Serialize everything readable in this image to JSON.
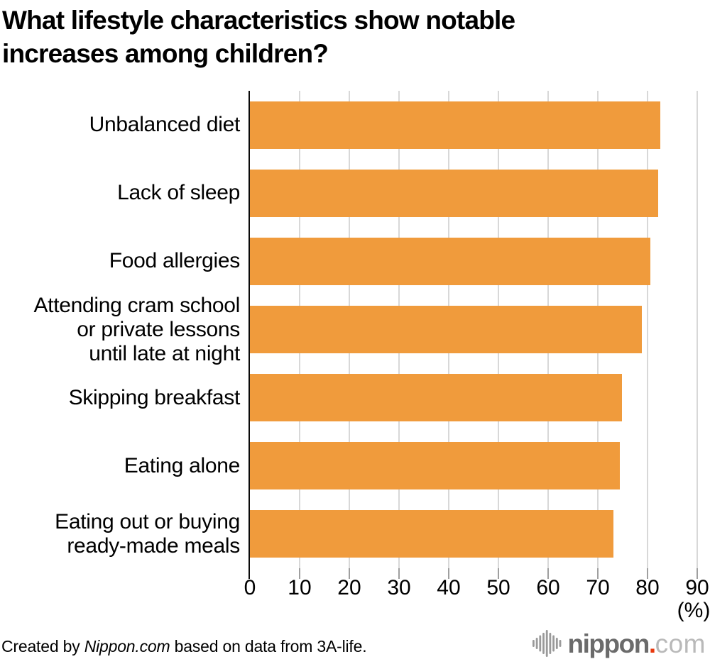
{
  "chart_data": {
    "type": "bar",
    "orientation": "horizontal",
    "title": "What lifestyle characteristics show notable increases among children?",
    "categories": [
      "Unbalanced diet",
      "Lack of sleep",
      "Food allergies",
      "Attending cram school\nor private lessons\nuntil late at night",
      "Skipping breakfast",
      "Eating alone",
      "Eating out or buying\nready-made meals"
    ],
    "values": [
      82.5,
      82.2,
      80.6,
      78.8,
      74.8,
      74.4,
      73.1
    ],
    "xlabel": "(%)",
    "xlim": [
      0,
      90
    ],
    "xticks": [
      0,
      10,
      20,
      30,
      40,
      50,
      60,
      70,
      80,
      90
    ],
    "bar_color": "#F09B3C",
    "grid": true,
    "gridline_color": "#d8d8d8",
    "legend_position": "none"
  },
  "footer": {
    "credit_prefix": "Created by ",
    "credit_source": "Nippon.com",
    "credit_suffix": " based on data from 3A-life.",
    "logo_text": "nippon",
    "logo_dot": ".",
    "logo_tld": "com",
    "logo_mark_color": "#9a9a9a"
  }
}
